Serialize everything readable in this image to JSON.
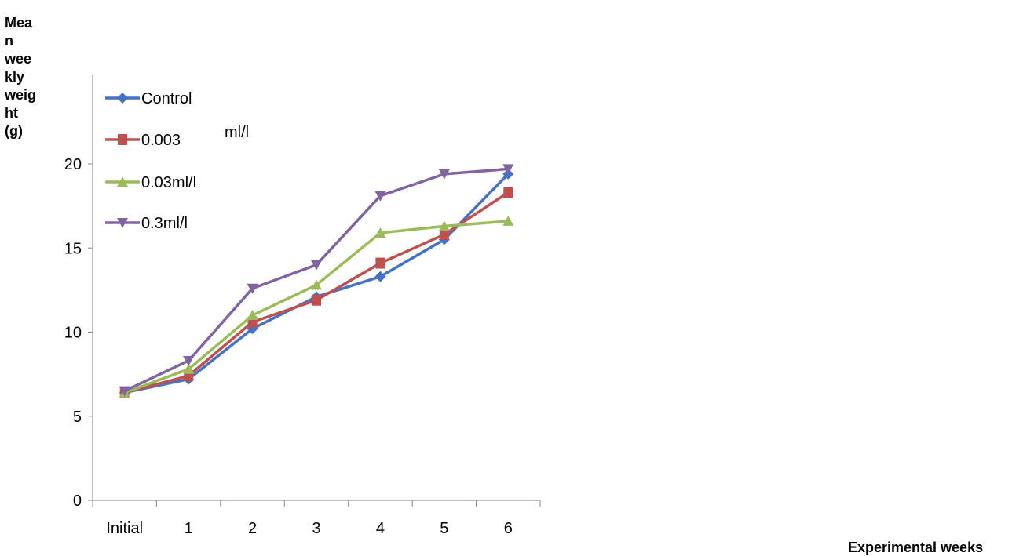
{
  "chart_data": {
    "type": "line",
    "title": "",
    "xlabel": "Experimental weeks",
    "ylabel": "Mean weekly weight (g)",
    "ylabel_lines": [
      "Mea",
      "n",
      "wee",
      "kly",
      "weig",
      "ht",
      "(g)"
    ],
    "categories": [
      "Initial",
      "1",
      "2",
      "3",
      "4",
      "5",
      "6"
    ],
    "ylim": [
      0,
      20
    ],
    "yticks": [
      0,
      5,
      10,
      15,
      20
    ],
    "grid": false,
    "legend_position": "top-left",
    "legend_extra_text": "ml/l",
    "series": [
      {
        "name": "Control",
        "marker": "diamond",
        "color": "#4472C4",
        "values": [
          6.4,
          7.2,
          10.2,
          12.1,
          13.3,
          15.5,
          19.4
        ]
      },
      {
        "name": "0.003",
        "marker": "square",
        "color": "#C0504D",
        "values": [
          6.4,
          7.4,
          10.6,
          11.9,
          14.1,
          15.8,
          18.3
        ]
      },
      {
        "name": "0.03ml/l",
        "marker": "triangle",
        "color": "#9BBB59",
        "values": [
          6.4,
          7.8,
          11.0,
          12.8,
          15.9,
          16.3,
          16.6
        ]
      },
      {
        "name": "0.3ml/l",
        "marker": "triangle-down",
        "color": "#8064A2",
        "values": [
          6.5,
          8.3,
          12.6,
          14.0,
          18.1,
          19.4,
          19.7
        ]
      }
    ]
  }
}
